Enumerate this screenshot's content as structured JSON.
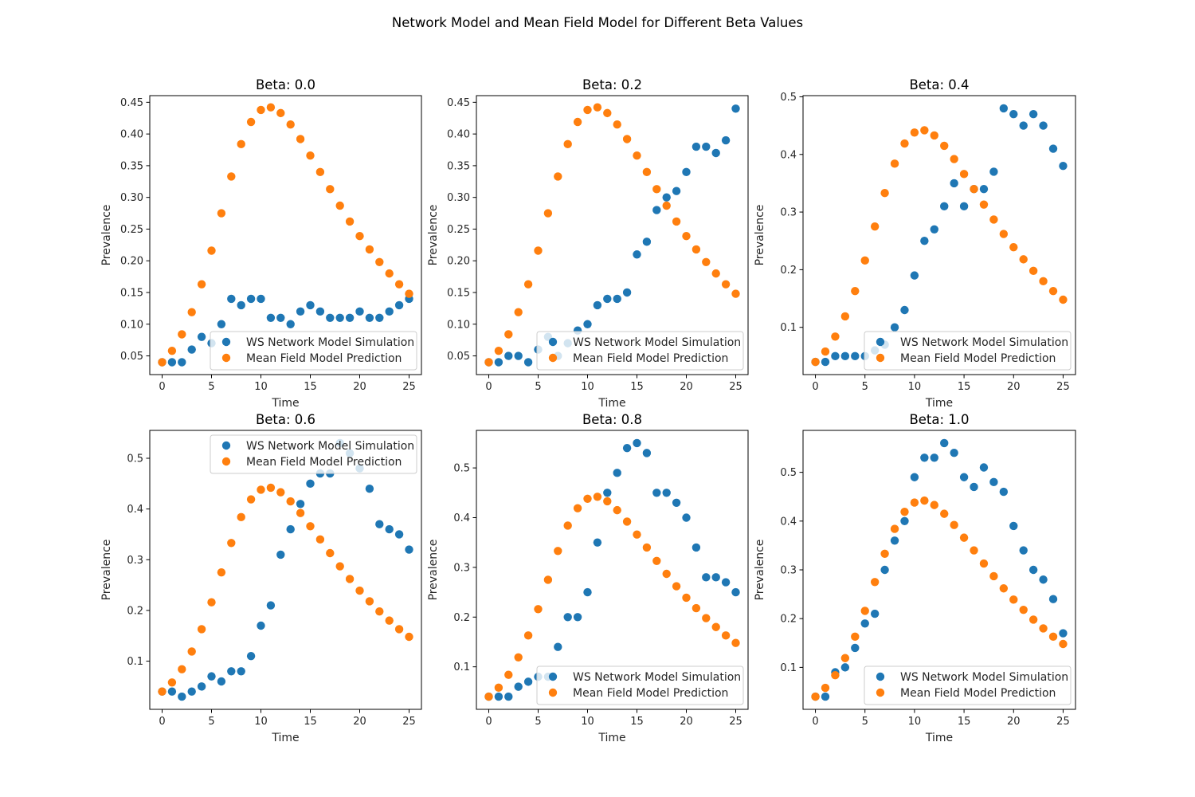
{
  "figure": {
    "title": "Network Model and Mean Field Model for Different Beta Values"
  },
  "colors": {
    "ws": "#1f77b4",
    "mf": "#ff7f0e",
    "axes": "#000000",
    "legend_border": "#cccccc"
  },
  "chart_data": [
    {
      "type": "scatter",
      "title": "Beta: 0.0",
      "xlabel": "Time",
      "ylabel": "Prevalence",
      "xlim": [
        -1.25,
        26.25
      ],
      "ylim": [
        0.0205,
        0.4605
      ],
      "xticks": [
        0,
        5,
        10,
        15,
        20,
        25
      ],
      "xtick_labels": [
        "0",
        "5",
        "10",
        "15",
        "20",
        "25"
      ],
      "yticks": [
        0.05,
        0.1,
        0.15,
        0.2,
        0.25,
        0.3,
        0.35,
        0.4,
        0.45
      ],
      "ytick_labels": [
        "0.05",
        "0.10",
        "0.15",
        "0.20",
        "0.25",
        "0.30",
        "0.35",
        "0.40",
        "0.45"
      ],
      "legend_position": "lower-right",
      "series": [
        {
          "name": "WS Network Model Simulation",
          "values": [
            0.04,
            0.04,
            0.04,
            0.06,
            0.08,
            0.07,
            0.1,
            0.14,
            0.13,
            0.14,
            0.14,
            0.11,
            0.11,
            0.1,
            0.12,
            0.13,
            0.12,
            0.11,
            0.11,
            0.11,
            0.12,
            0.11,
            0.11,
            0.12,
            0.13,
            0.14
          ]
        },
        {
          "name": "Mean Field Model Prediction",
          "values": [
            0.04,
            0.058,
            0.084,
            0.119,
            0.163,
            0.216,
            0.275,
            0.333,
            0.384,
            0.419,
            0.438,
            0.442,
            0.433,
            0.415,
            0.392,
            0.366,
            0.34,
            0.313,
            0.287,
            0.262,
            0.239,
            0.218,
            0.198,
            0.18,
            0.163,
            0.148
          ]
        }
      ]
    },
    {
      "type": "scatter",
      "title": "Beta: 0.2",
      "xlabel": "Time",
      "ylabel": "Prevalence",
      "xlim": [
        -1.25,
        26.25
      ],
      "ylim": [
        0.0205,
        0.4605
      ],
      "xticks": [
        0,
        5,
        10,
        15,
        20,
        25
      ],
      "xtick_labels": [
        "0",
        "5",
        "10",
        "15",
        "20",
        "25"
      ],
      "yticks": [
        0.05,
        0.1,
        0.15,
        0.2,
        0.25,
        0.3,
        0.35,
        0.4,
        0.45
      ],
      "ytick_labels": [
        "0.05",
        "0.10",
        "0.15",
        "0.20",
        "0.25",
        "0.30",
        "0.35",
        "0.40",
        "0.45"
      ],
      "legend_position": "lower-right",
      "series": [
        {
          "name": "WS Network Model Simulation",
          "values": [
            0.04,
            0.04,
            0.05,
            0.05,
            0.04,
            0.06,
            0.08,
            0.05,
            0.07,
            0.09,
            0.1,
            0.13,
            0.14,
            0.14,
            0.15,
            0.21,
            0.23,
            0.28,
            0.3,
            0.31,
            0.34,
            0.38,
            0.38,
            0.37,
            0.39,
            0.44
          ]
        },
        {
          "name": "Mean Field Model Prediction",
          "values": [
            0.04,
            0.058,
            0.084,
            0.119,
            0.163,
            0.216,
            0.275,
            0.333,
            0.384,
            0.419,
            0.438,
            0.442,
            0.433,
            0.415,
            0.392,
            0.366,
            0.34,
            0.313,
            0.287,
            0.262,
            0.239,
            0.218,
            0.198,
            0.18,
            0.163,
            0.148
          ]
        }
      ]
    },
    {
      "type": "scatter",
      "title": "Beta: 0.4",
      "xlabel": "Time",
      "ylabel": "Prevalence",
      "xlim": [
        -1.25,
        26.25
      ],
      "ylim": [
        0.018,
        0.502
      ],
      "xticks": [
        0,
        5,
        10,
        15,
        20,
        25
      ],
      "xtick_labels": [
        "0",
        "5",
        "10",
        "15",
        "20",
        "25"
      ],
      "yticks": [
        0.1,
        0.2,
        0.3,
        0.4,
        0.5
      ],
      "ytick_labels": [
        "0.1",
        "0.2",
        "0.3",
        "0.4",
        "0.5"
      ],
      "legend_position": "lower-right",
      "series": [
        {
          "name": "WS Network Model Simulation",
          "values": [
            0.04,
            0.04,
            0.05,
            0.05,
            0.05,
            0.05,
            0.06,
            0.07,
            0.1,
            0.13,
            0.19,
            0.25,
            0.27,
            0.31,
            0.35,
            0.31,
            0.34,
            0.34,
            0.37,
            0.48,
            0.47,
            0.45,
            0.47,
            0.45,
            0.41,
            0.38
          ]
        },
        {
          "name": "Mean Field Model Prediction",
          "values": [
            0.04,
            0.058,
            0.084,
            0.119,
            0.163,
            0.216,
            0.275,
            0.333,
            0.384,
            0.419,
            0.438,
            0.442,
            0.433,
            0.415,
            0.392,
            0.366,
            0.34,
            0.313,
            0.287,
            0.262,
            0.239,
            0.218,
            0.198,
            0.18,
            0.163,
            0.148
          ]
        }
      ]
    },
    {
      "type": "scatter",
      "title": "Beta: 0.6",
      "xlabel": "Time",
      "ylabel": "Prevalence",
      "xlim": [
        -1.25,
        26.25
      ],
      "ylim": [
        0.005,
        0.555
      ],
      "xticks": [
        0,
        5,
        10,
        15,
        20,
        25
      ],
      "xtick_labels": [
        "0",
        "5",
        "10",
        "15",
        "20",
        "25"
      ],
      "yticks": [
        0.1,
        0.2,
        0.3,
        0.4,
        0.5
      ],
      "ytick_labels": [
        "0.1",
        "0.2",
        "0.3",
        "0.4",
        "0.5"
      ],
      "legend_position": "upper-right",
      "series": [
        {
          "name": "WS Network Model Simulation",
          "values": [
            0.04,
            0.04,
            0.03,
            0.04,
            0.05,
            0.07,
            0.06,
            0.08,
            0.08,
            0.11,
            0.17,
            0.21,
            0.31,
            0.36,
            0.41,
            0.45,
            0.47,
            0.47,
            0.53,
            0.51,
            0.48,
            0.44,
            0.37,
            0.36,
            0.35,
            0.32
          ]
        },
        {
          "name": "Mean Field Model Prediction",
          "values": [
            0.04,
            0.058,
            0.084,
            0.119,
            0.163,
            0.216,
            0.275,
            0.333,
            0.384,
            0.419,
            0.438,
            0.442,
            0.433,
            0.415,
            0.392,
            0.366,
            0.34,
            0.313,
            0.287,
            0.262,
            0.239,
            0.218,
            0.198,
            0.18,
            0.163,
            0.148
          ]
        }
      ]
    },
    {
      "type": "scatter",
      "title": "Beta: 0.8",
      "xlabel": "Time",
      "ylabel": "Prevalence",
      "xlim": [
        -1.25,
        26.25
      ],
      "ylim": [
        0.0145,
        0.5755
      ],
      "xticks": [
        0,
        5,
        10,
        15,
        20,
        25
      ],
      "xtick_labels": [
        "0",
        "5",
        "10",
        "15",
        "20",
        "25"
      ],
      "yticks": [
        0.1,
        0.2,
        0.3,
        0.4,
        0.5
      ],
      "ytick_labels": [
        "0.1",
        "0.2",
        "0.3",
        "0.4",
        "0.5"
      ],
      "legend_position": "lower-right",
      "series": [
        {
          "name": "WS Network Model Simulation",
          "values": [
            0.04,
            0.04,
            0.04,
            0.06,
            0.07,
            0.08,
            0.08,
            0.14,
            0.2,
            0.2,
            0.25,
            0.35,
            0.45,
            0.49,
            0.54,
            0.55,
            0.53,
            0.45,
            0.45,
            0.43,
            0.4,
            0.34,
            0.28,
            0.28,
            0.27,
            0.25
          ]
        },
        {
          "name": "Mean Field Model Prediction",
          "values": [
            0.04,
            0.058,
            0.084,
            0.119,
            0.163,
            0.216,
            0.275,
            0.333,
            0.384,
            0.419,
            0.438,
            0.442,
            0.433,
            0.415,
            0.392,
            0.366,
            0.34,
            0.313,
            0.287,
            0.262,
            0.239,
            0.218,
            0.198,
            0.18,
            0.163,
            0.148
          ]
        }
      ]
    },
    {
      "type": "scatter",
      "title": "Beta: 1.0",
      "xlabel": "Time",
      "ylabel": "Prevalence",
      "xlim": [
        -1.25,
        26.25
      ],
      "ylim": [
        0.014,
        0.586
      ],
      "xticks": [
        0,
        5,
        10,
        15,
        20,
        25
      ],
      "xtick_labels": [
        "0",
        "5",
        "10",
        "15",
        "20",
        "25"
      ],
      "yticks": [
        0.1,
        0.2,
        0.3,
        0.4,
        0.5
      ],
      "ytick_labels": [
        "0.1",
        "0.2",
        "0.3",
        "0.4",
        "0.5"
      ],
      "legend_position": "lower-right",
      "series": [
        {
          "name": "WS Network Model Simulation",
          "values": [
            0.04,
            0.04,
            0.09,
            0.1,
            0.14,
            0.19,
            0.21,
            0.3,
            0.36,
            0.4,
            0.49,
            0.53,
            0.53,
            0.56,
            0.54,
            0.49,
            0.47,
            0.51,
            0.48,
            0.46,
            0.39,
            0.34,
            0.3,
            0.28,
            0.24,
            0.17
          ]
        },
        {
          "name": "Mean Field Model Prediction",
          "values": [
            0.04,
            0.058,
            0.084,
            0.119,
            0.163,
            0.216,
            0.275,
            0.333,
            0.384,
            0.419,
            0.438,
            0.442,
            0.433,
            0.415,
            0.392,
            0.366,
            0.34,
            0.313,
            0.287,
            0.262,
            0.239,
            0.218,
            0.198,
            0.18,
            0.163,
            0.148
          ]
        }
      ]
    }
  ]
}
